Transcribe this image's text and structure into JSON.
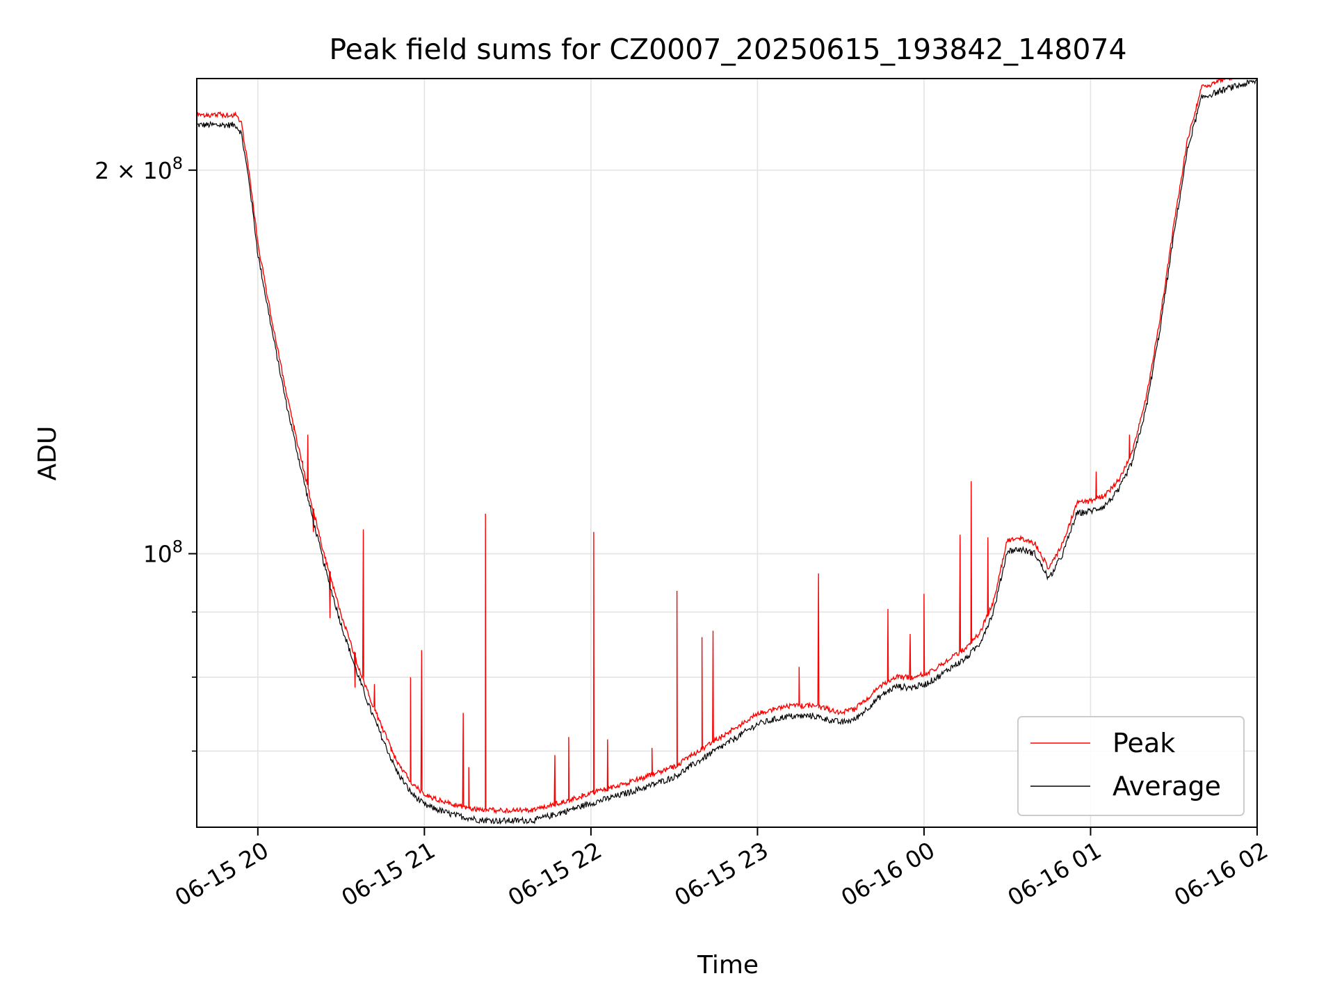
{
  "chart_data": {
    "type": "line",
    "title": "Peak field sums for CZ0007_20250615_193842_148074",
    "xlabel": "Time",
    "ylabel": "ADU",
    "y_scale": "log",
    "xlim": [
      "2025-06-15 19:38",
      "2025-06-16 02:00"
    ],
    "ylim": [
      61000000,
      236000000
    ],
    "grid": true,
    "legend_position": "lower-right",
    "x_ticks": [
      {
        "t": "2025-06-15 20:00",
        "label": "06-15 20"
      },
      {
        "t": "2025-06-15 21:00",
        "label": "06-15 21"
      },
      {
        "t": "2025-06-15 22:00",
        "label": "06-15 22"
      },
      {
        "t": "2025-06-15 23:00",
        "label": "06-15 23"
      },
      {
        "t": "2025-06-16 00:00",
        "label": "06-16 00"
      },
      {
        "t": "2025-06-16 01:00",
        "label": "06-16 01"
      },
      {
        "t": "2025-06-16 02:00",
        "label": "06-16 02"
      }
    ],
    "y_major_ticks": [
      {
        "value": 100000000,
        "base": "10",
        "exp": "8",
        "mantissa": ""
      },
      {
        "value": 200000000,
        "base": "10",
        "exp": "8",
        "mantissa": "2 × "
      }
    ],
    "y_minor_ticks": [
      70000000,
      80000000,
      90000000
    ],
    "series": [
      {
        "name": "Average",
        "color": "#000000",
        "points": [
          [
            "2025-06-15 19:38",
            217000000
          ],
          [
            "2025-06-15 19:52",
            217000000
          ],
          [
            "2025-06-15 19:54",
            214000000
          ],
          [
            "2025-06-15 19:57",
            195000000
          ],
          [
            "2025-06-15 20:00",
            172000000
          ],
          [
            "2025-06-15 20:05",
            150000000
          ],
          [
            "2025-06-15 20:10",
            132000000
          ],
          [
            "2025-06-15 20:15",
            118000000
          ],
          [
            "2025-06-15 20:20",
            106000000
          ],
          [
            "2025-06-15 20:25",
            96000000
          ],
          [
            "2025-06-15 20:30",
            88000000
          ],
          [
            "2025-06-15 20:35",
            81500000
          ],
          [
            "2025-06-15 20:40",
            76000000
          ],
          [
            "2025-06-15 20:45",
            71500000
          ],
          [
            "2025-06-15 20:50",
            67500000
          ],
          [
            "2025-06-15 20:55",
            65000000
          ],
          [
            "2025-06-15 21:00",
            63500000
          ],
          [
            "2025-06-15 21:10",
            62400000
          ],
          [
            "2025-06-15 21:20",
            61800000
          ],
          [
            "2025-06-15 21:30",
            61700000
          ],
          [
            "2025-06-15 21:40",
            61800000
          ],
          [
            "2025-06-15 21:50",
            62700000
          ],
          [
            "2025-06-15 22:00",
            63700000
          ],
          [
            "2025-06-15 22:10",
            64600000
          ],
          [
            "2025-06-15 22:20",
            65600000
          ],
          [
            "2025-06-15 22:30",
            66800000
          ],
          [
            "2025-06-15 22:40",
            69000000
          ],
          [
            "2025-06-15 22:50",
            71200000
          ],
          [
            "2025-06-15 23:00",
            73500000
          ],
          [
            "2025-06-15 23:10",
            74500000
          ],
          [
            "2025-06-15 23:20",
            74600000
          ],
          [
            "2025-06-15 23:30",
            73700000
          ],
          [
            "2025-06-15 23:35",
            74100000
          ],
          [
            "2025-06-15 23:45",
            77500000
          ],
          [
            "2025-06-15 23:50",
            78700000
          ],
          [
            "2025-06-15 23:55",
            78500000
          ],
          [
            "2025-06-16 00:00",
            78900000
          ],
          [
            "2025-06-16 00:05",
            80000000
          ],
          [
            "2025-06-16 00:10",
            81500000
          ],
          [
            "2025-06-16 00:15",
            82700000
          ],
          [
            "2025-06-16 00:20",
            85000000
          ],
          [
            "2025-06-16 00:25",
            90000000
          ],
          [
            "2025-06-16 00:30",
            100500000
          ],
          [
            "2025-06-16 00:35",
            100800000
          ],
          [
            "2025-06-16 00:40",
            100000000
          ],
          [
            "2025-06-16 00:45",
            95500000
          ],
          [
            "2025-06-16 00:50",
            100000000
          ],
          [
            "2025-06-16 00:55",
            107500000
          ],
          [
            "2025-06-16 01:00",
            108000000
          ],
          [
            "2025-06-16 01:05",
            109000000
          ],
          [
            "2025-06-16 01:10",
            112000000
          ],
          [
            "2025-06-16 01:15",
            118000000
          ],
          [
            "2025-06-16 01:20",
            130000000
          ],
          [
            "2025-06-16 01:25",
            150000000
          ],
          [
            "2025-06-16 01:30",
            178000000
          ],
          [
            "2025-06-16 01:35",
            208000000
          ],
          [
            "2025-06-16 01:40",
            228000000
          ],
          [
            "2025-06-16 01:50",
            232000000
          ],
          [
            "2025-06-16 02:00",
            235000000
          ]
        ]
      },
      {
        "name": "Peak",
        "color": "#ff0000",
        "offset": 0.006,
        "spikes": [
          [
            "2025-06-15 20:13",
            125000000
          ],
          [
            "2025-06-15 20:16",
            118000000
          ],
          [
            "2025-06-15 20:18",
            124000000
          ],
          [
            "2025-06-15 20:20",
            104000000
          ],
          [
            "2025-06-15 20:26",
            89000000
          ],
          [
            "2025-06-15 20:35",
            78500000
          ],
          [
            "2025-06-15 20:38",
            104500000
          ],
          [
            "2025-06-15 20:42",
            79000000
          ],
          [
            "2025-06-15 20:48",
            70000000
          ],
          [
            "2025-06-15 20:55",
            80000000
          ],
          [
            "2025-06-15 20:59",
            84000000
          ],
          [
            "2025-06-15 21:14",
            75000000
          ],
          [
            "2025-06-15 21:16",
            68000000
          ],
          [
            "2025-06-15 21:22",
            107500000
          ],
          [
            "2025-06-15 21:47",
            69500000
          ],
          [
            "2025-06-15 21:52",
            71800000
          ],
          [
            "2025-06-15 22:01",
            104000000
          ],
          [
            "2025-06-15 22:06",
            71500000
          ],
          [
            "2025-06-15 22:22",
            70400000
          ],
          [
            "2025-06-15 22:31",
            93500000
          ],
          [
            "2025-06-15 22:40",
            86000000
          ],
          [
            "2025-06-15 22:44",
            87000000
          ],
          [
            "2025-06-15 23:15",
            81500000
          ],
          [
            "2025-06-15 23:22",
            96500000
          ],
          [
            "2025-06-15 23:47",
            90500000
          ],
          [
            "2025-06-15 23:55",
            86500000
          ],
          [
            "2025-06-16 00:00",
            93000000
          ],
          [
            "2025-06-16 00:13",
            103500000
          ],
          [
            "2025-06-16 00:17",
            114000000
          ],
          [
            "2025-06-16 00:23",
            103000000
          ],
          [
            "2025-06-16 01:02",
            116000000
          ],
          [
            "2025-06-16 01:14",
            124000000
          ]
        ]
      }
    ]
  }
}
